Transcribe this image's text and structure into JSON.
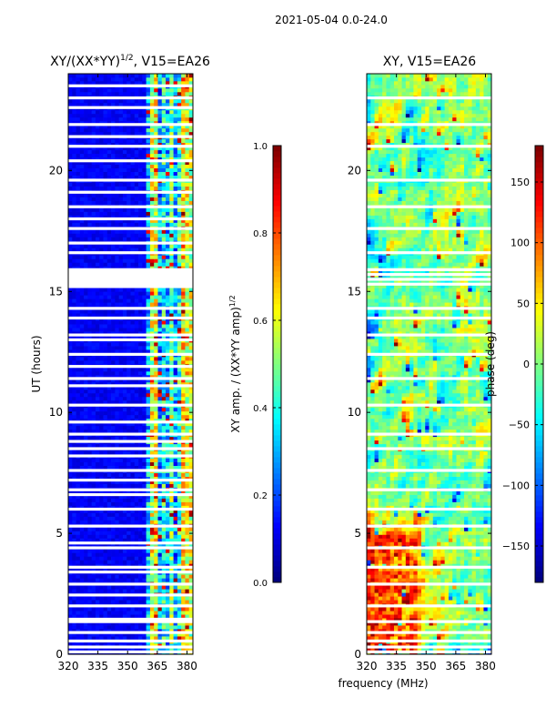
{
  "figure_title": "2021-05-04 0.0-24.0",
  "shared_xlabel": "frequency (MHz)",
  "colors": {
    "background": "#ffffff",
    "gap": "#ffffff",
    "axis": "#000000"
  },
  "chart_data": [
    {
      "type": "heatmap",
      "title_prefix": "XY/(XX*YY)",
      "title_exponent": "1/2",
      "title_suffix": ", V15=EA26",
      "xlabel": "frequency (MHz)",
      "ylabel": "UT (hours)",
      "xlim": [
        320,
        383
      ],
      "ylim": [
        0,
        24
      ],
      "xticks": [
        320,
        335,
        350,
        365,
        380
      ],
      "yticks": [
        0,
        5,
        10,
        15,
        20
      ],
      "colormap": "jet",
      "seed": 11,
      "mode": "amp",
      "high_freq_start": 360,
      "colorbar": {
        "label_prefix": "XY amp. / (XX*YY amp)",
        "label_exponent": "1/2",
        "range": [
          0,
          1
        ],
        "ticks": [
          "0.0",
          "0.2",
          "0.4",
          "0.6",
          "0.8",
          "1.0"
        ],
        "tick_values": [
          0,
          0.2,
          0.4,
          0.6,
          0.8,
          1.0
        ]
      },
      "gaps_hours": [
        0.1,
        0.3,
        0.55,
        0.9,
        1.35,
        1.45,
        2.0,
        2.45,
        2.9,
        3.4,
        3.6,
        4.4,
        4.6,
        5.3,
        6.0,
        6.6,
        6.8,
        7.2,
        7.6,
        8.2,
        8.5,
        8.8,
        9.1,
        9.6,
        10.3,
        11.1,
        11.4,
        11.9,
        12.4,
        13.0,
        13.2,
        13.9,
        14.3,
        15.2,
        15.3,
        15.4,
        15.5,
        15.6,
        15.7,
        15.8,
        15.9,
        16.6,
        17.0,
        17.6,
        18.0,
        18.5,
        19.1,
        19.6,
        20.4,
        21.0,
        21.4,
        21.9,
        22.6,
        23.0,
        23.5
      ]
    },
    {
      "type": "heatmap",
      "title_prefix": "XY, V15=EA26",
      "title_exponent": "",
      "title_suffix": "",
      "xlabel": "frequency (MHz)",
      "ylabel": "",
      "xlim": [
        320,
        383
      ],
      "ylim": [
        0,
        24
      ],
      "xticks": [
        320,
        335,
        350,
        365,
        380
      ],
      "yticks": [
        0,
        5,
        10,
        15,
        20
      ],
      "colormap": "jet",
      "seed": 23,
      "mode": "phase",
      "colorbar": {
        "label_prefix": "phase (deg)",
        "label_exponent": "",
        "range": [
          -180,
          180
        ],
        "ticks": [
          "−150",
          "−100",
          "−50",
          "0",
          "50",
          "100",
          "150"
        ],
        "tick_values": [
          -150,
          -100,
          -50,
          0,
          50,
          100,
          150
        ]
      },
      "gaps_hours": [
        0.1,
        0.3,
        0.55,
        0.9,
        1.35,
        2.0,
        2.9,
        3.6,
        4.4,
        5.3,
        6.0,
        6.8,
        7.6,
        8.5,
        9.1,
        10.3,
        11.4,
        12.4,
        13.2,
        13.9,
        14.3,
        15.3,
        15.5,
        15.7,
        15.9,
        16.6,
        17.6,
        18.5,
        19.6,
        21.0,
        21.9,
        23.0
      ]
    }
  ]
}
